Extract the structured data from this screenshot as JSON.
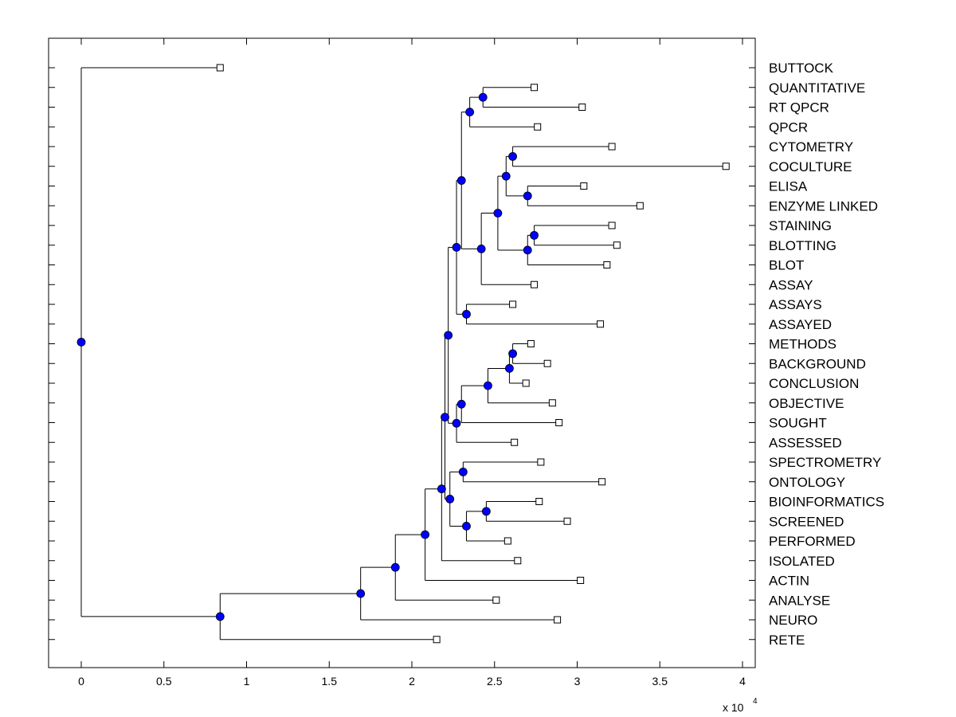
{
  "chart_data": {
    "type": "dendrogram",
    "orientation": "horizontal",
    "xlim": [
      -0.2,
      4.05
    ],
    "x_ticks": [
      0,
      0.5,
      1,
      1.5,
      2,
      2.5,
      3,
      3.5,
      4
    ],
    "x_tick_labels": [
      "0",
      "0.5",
      "1",
      "1.5",
      "2",
      "2.5",
      "3",
      "3.5",
      "4"
    ],
    "x_scale_label": "x 10",
    "x_scale_exponent": "4",
    "colors": {
      "node": "#0000ff",
      "line": "#000000",
      "leaf": "#ffffff"
    },
    "leaves": [
      {
        "name": "BUTTOCK",
        "x": 0.84
      },
      {
        "name": "QUANTITATIVE",
        "x": 2.74
      },
      {
        "name": "RT QPCR",
        "x": 3.03
      },
      {
        "name": "QPCR",
        "x": 2.76
      },
      {
        "name": "CYTOMETRY",
        "x": 3.21
      },
      {
        "name": "COCULTURE",
        "x": 3.9
      },
      {
        "name": "ELISA",
        "x": 3.04
      },
      {
        "name": "ENZYME LINKED",
        "x": 3.38
      },
      {
        "name": "STAINING",
        "x": 3.21
      },
      {
        "name": "BLOTTING",
        "x": 3.24
      },
      {
        "name": "BLOT",
        "x": 3.18
      },
      {
        "name": "ASSAY",
        "x": 2.74
      },
      {
        "name": "ASSAYS",
        "x": 2.61
      },
      {
        "name": "ASSAYED",
        "x": 3.14
      },
      {
        "name": "METHODS",
        "x": 2.72
      },
      {
        "name": "BACKGROUND",
        "x": 2.82
      },
      {
        "name": "CONCLUSION",
        "x": 2.69
      },
      {
        "name": "OBJECTIVE",
        "x": 2.85
      },
      {
        "name": "SOUGHT",
        "x": 2.89
      },
      {
        "name": "ASSESSED",
        "x": 2.62
      },
      {
        "name": "SPECTROMETRY",
        "x": 2.78
      },
      {
        "name": "ONTOLOGY",
        "x": 3.15
      },
      {
        "name": "BIOINFORMATICS",
        "x": 2.77
      },
      {
        "name": "SCREENED",
        "x": 2.94
      },
      {
        "name": "PERFORMED",
        "x": 2.58
      },
      {
        "name": "ISOLATED",
        "x": 2.64
      },
      {
        "name": "ACTIN",
        "x": 3.02
      },
      {
        "name": "ANALYSE",
        "x": 2.51
      },
      {
        "name": "NEURO",
        "x": 2.88
      },
      {
        "name": "RETE",
        "x": 2.15
      }
    ],
    "tree": {
      "x": 0,
      "c": [
        {
          "leaf": 0
        },
        {
          "x": 0.84,
          "c": [
            {
              "x": 1.69,
              "c": [
                {
                  "x": 1.9,
                  "c": [
                    {
                      "x": 2.08,
                      "c": [
                        {
                          "x": 2.18,
                          "c": [
                            {
                              "x": 2.2,
                              "c": [
                                {
                                  "x": 2.22,
                                  "c": [
                                    {
                                      "x": 2.27,
                                      "c": [
                                        {
                                          "x": 2.3,
                                          "c": [
                                            {
                                              "x": 2.35,
                                              "c": [
                                                {
                                                  "x": 2.43,
                                                  "c": [
                                                    {
                                                      "leaf": 1
                                                    },
                                                    {
                                                      "leaf": 2
                                                    }
                                                  ]
                                                },
                                                {
                                                  "leaf": 3
                                                }
                                              ]
                                            },
                                            {
                                              "x": 2.42,
                                              "c": [
                                                {
                                                  "x": 2.52,
                                                  "c": [
                                                    {
                                                      "x": 2.57,
                                                      "c": [
                                                        {
                                                          "x": 2.61,
                                                          "c": [
                                                            {
                                                              "leaf": 4
                                                            },
                                                            {
                                                              "leaf": 5
                                                            }
                                                          ]
                                                        },
                                                        {
                                                          "x": 2.7,
                                                          "c": [
                                                            {
                                                              "leaf": 6
                                                            },
                                                            {
                                                              "leaf": 7
                                                            }
                                                          ]
                                                        }
                                                      ]
                                                    },
                                                    {
                                                      "x": 2.7,
                                                      "c": [
                                                        {
                                                          "x": 2.74,
                                                          "c": [
                                                            {
                                                              "leaf": 8
                                                            },
                                                            {
                                                              "leaf": 9
                                                            }
                                                          ]
                                                        },
                                                        {
                                                          "leaf": 10
                                                        }
                                                      ]
                                                    }
                                                  ]
                                                },
                                                {
                                                  "leaf": 11
                                                }
                                              ]
                                            }
                                          ]
                                        },
                                        {
                                          "x": 2.33,
                                          "c": [
                                            {
                                              "leaf": 12
                                            },
                                            {
                                              "leaf": 13
                                            }
                                          ]
                                        }
                                      ]
                                    },
                                    {
                                      "x": 2.27,
                                      "c": [
                                        {
                                          "x": 2.3,
                                          "c": [
                                            {
                                              "x": 2.46,
                                              "c": [
                                                {
                                                  "x": 2.59,
                                                  "c": [
                                                    {
                                                      "x": 2.61,
                                                      "c": [
                                                        {
                                                          "leaf": 14
                                                        },
                                                        {
                                                          "leaf": 15
                                                        }
                                                      ]
                                                    },
                                                    {
                                                      "leaf": 16
                                                    }
                                                  ]
                                                },
                                                {
                                                  "leaf": 17
                                                }
                                              ]
                                            },
                                            {
                                              "leaf": 18
                                            }
                                          ]
                                        },
                                        {
                                          "leaf": 19
                                        }
                                      ]
                                    }
                                  ]
                                },
                                {
                                  "x": 2.23,
                                  "c": [
                                    {
                                      "x": 2.31,
                                      "c": [
                                        {
                                          "leaf": 20
                                        },
                                        {
                                          "leaf": 21
                                        }
                                      ]
                                    },
                                    {
                                      "x": 2.33,
                                      "c": [
                                        {
                                          "x": 2.45,
                                          "c": [
                                            {
                                              "leaf": 22
                                            },
                                            {
                                              "leaf": 23
                                            }
                                          ]
                                        },
                                        {
                                          "leaf": 24
                                        }
                                      ]
                                    }
                                  ]
                                }
                              ]
                            },
                            {
                              "leaf": 25
                            }
                          ]
                        },
                        {
                          "leaf": 26
                        }
                      ]
                    },
                    {
                      "leaf": 27
                    }
                  ]
                },
                {
                  "leaf": 28
                }
              ]
            },
            {
              "leaf": 29
            }
          ]
        }
      ]
    }
  }
}
